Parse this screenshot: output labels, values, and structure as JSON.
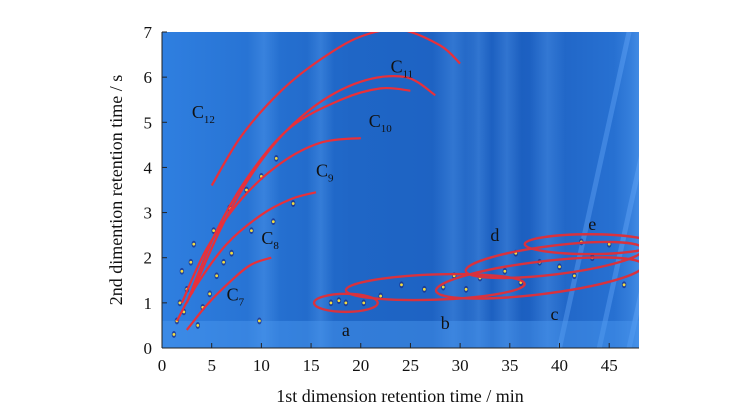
{
  "chart_data": {
    "type": "heatmap",
    "title": "",
    "xlabel": "1st dimension retention time / min",
    "ylabel": "2nd dimention retention time / s",
    "xlim": [
      0,
      48
    ],
    "ylim": [
      0,
      7
    ],
    "xticks": [
      0,
      5,
      10,
      15,
      20,
      25,
      30,
      35,
      40,
      45
    ],
    "yticks": [
      0,
      1,
      2,
      3,
      4,
      5,
      6,
      7
    ],
    "colors": {
      "background": "#1f6fd0",
      "curve": "#e8303a",
      "peak": "#f2dc40",
      "ellipse": "#d8323e"
    },
    "homolog_curves": [
      {
        "label_main": "C",
        "label_sub": "7",
        "points": [
          [
            2.5,
            0.4
          ],
          [
            4.5,
            0.95
          ],
          [
            7,
            1.5
          ],
          [
            9,
            1.85
          ],
          [
            11,
            2.0
          ]
        ]
      },
      {
        "label_main": "C",
        "label_sub": "8",
        "points": [
          [
            1.5,
            0.6
          ],
          [
            3.5,
            1.4
          ],
          [
            6.5,
            2.3
          ],
          [
            10,
            2.95
          ],
          [
            13,
            3.3
          ],
          [
            15.5,
            3.45
          ]
        ]
      },
      {
        "label_main": "C",
        "label_sub": "9",
        "points": [
          [
            2,
            1.0
          ],
          [
            4.5,
            2.2
          ],
          [
            8,
            3.3
          ],
          [
            12,
            4.1
          ],
          [
            16,
            4.55
          ],
          [
            20,
            4.65
          ]
        ]
      },
      {
        "label_main": "C",
        "label_sub": "10",
        "points": [
          [
            2.5,
            1.0
          ],
          [
            5.5,
            2.6
          ],
          [
            9,
            3.9
          ],
          [
            13,
            4.9
          ],
          [
            18,
            5.5
          ],
          [
            22,
            5.75
          ],
          [
            25,
            5.7
          ]
        ]
      },
      {
        "label_main": "C",
        "label_sub": "12",
        "points": [
          [
            5,
            3.6
          ],
          [
            8,
            4.7
          ],
          [
            12,
            5.7
          ],
          [
            16,
            6.4
          ],
          [
            20,
            6.9
          ],
          [
            24,
            7.05
          ],
          [
            28,
            6.7
          ],
          [
            30,
            6.3
          ]
        ]
      }
    ],
    "labels": [
      {
        "main": "C",
        "sub": "12",
        "x": 3,
        "y": 5.1
      },
      {
        "main": "C",
        "sub": "11",
        "x": 23,
        "y": 6.1
      },
      {
        "main": "C",
        "sub": "10",
        "x": 20.8,
        "y": 4.9
      },
      {
        "main": "C",
        "sub": "9",
        "x": 15.5,
        "y": 3.8
      },
      {
        "main": "C",
        "sub": "8",
        "x": 10,
        "y": 2.3
      },
      {
        "main": "C",
        "sub": "7",
        "x": 6.5,
        "y": 1.05
      }
    ],
    "groups": [
      {
        "label": "a",
        "cx": 18.5,
        "cy": 1.0,
        "rx": 3.2,
        "ry": 0.2,
        "angle": 0,
        "label_x": 18.5,
        "label_y": 0.4
      },
      {
        "label": "b",
        "cx": 27.5,
        "cy": 1.35,
        "rx": 9.0,
        "ry": 0.28,
        "angle": -2,
        "label_x": 28.5,
        "label_y": 0.55
      },
      {
        "label": "c",
        "cx": 38.0,
        "cy": 1.55,
        "rx": 10.5,
        "ry": 0.36,
        "angle": -7,
        "label_x": 39.5,
        "label_y": 0.75
      },
      {
        "label": "d",
        "cx": 39.5,
        "cy": 1.95,
        "rx": 9.0,
        "ry": 0.32,
        "angle": -7,
        "label_x": 33.5,
        "label_y": 2.5
      },
      {
        "label": "e",
        "cx": 43.0,
        "cy": 2.3,
        "rx": 6.5,
        "ry": 0.22,
        "angle": 0,
        "label_x": 43.3,
        "label_y": 2.75
      }
    ],
    "peaks": [
      [
        1.2,
        0.3
      ],
      [
        1.5,
        0.6
      ],
      [
        2.2,
        0.8
      ],
      [
        2.5,
        1.3
      ],
      [
        2.9,
        1.9
      ],
      [
        3.2,
        2.3
      ],
      [
        1.8,
        1.0
      ],
      [
        2.0,
        1.7
      ],
      [
        3.6,
        0.5
      ],
      [
        4.1,
        0.9
      ],
      [
        4.8,
        1.2
      ],
      [
        5.5,
        1.6
      ],
      [
        6.2,
        1.9
      ],
      [
        7.0,
        2.1
      ],
      [
        5.2,
        2.6
      ],
      [
        6.8,
        3.1
      ],
      [
        8.5,
        3.5
      ],
      [
        10.0,
        3.8
      ],
      [
        11.5,
        4.2
      ],
      [
        9.0,
        2.6
      ],
      [
        11.2,
        2.8
      ],
      [
        13.2,
        3.2
      ],
      [
        9.8,
        0.6
      ],
      [
        17.0,
        1.0
      ],
      [
        17.8,
        1.05
      ],
      [
        18.5,
        1.0
      ],
      [
        20.3,
        1.0
      ],
      [
        22.0,
        1.15
      ],
      [
        24.1,
        1.4
      ],
      [
        26.4,
        1.3
      ],
      [
        28.3,
        1.35
      ],
      [
        30.6,
        1.3
      ],
      [
        32.0,
        1.55
      ],
      [
        34.5,
        1.7
      ],
      [
        36.1,
        1.45
      ],
      [
        38.0,
        1.9
      ],
      [
        40.0,
        1.8
      ],
      [
        41.5,
        1.6
      ],
      [
        43.3,
        2.0
      ],
      [
        45.0,
        2.3
      ],
      [
        46.5,
        1.4
      ],
      [
        29.4,
        1.6
      ],
      [
        35.6,
        2.1
      ],
      [
        42.2,
        2.35
      ]
    ]
  }
}
